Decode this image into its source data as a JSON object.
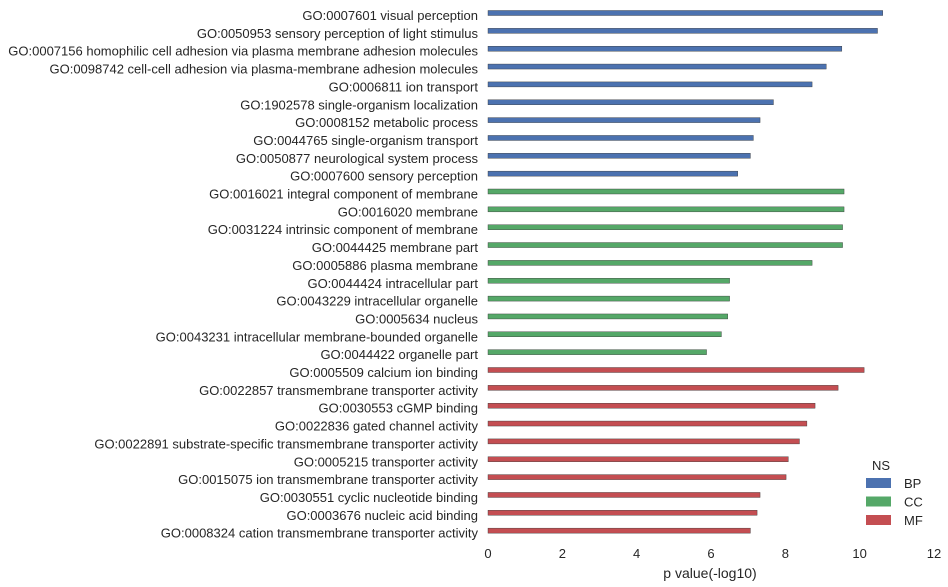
{
  "chart_data": {
    "type": "bar",
    "orientation": "horizontal",
    "title": "",
    "xlabel": "p value(-log10)",
    "ylabel": "",
    "xlim": [
      0,
      12
    ],
    "xticks": [
      "0",
      "2",
      "4",
      "6",
      "8",
      "10",
      "12"
    ],
    "grid": false,
    "legend": {
      "title": "NS",
      "placement": "lower-right",
      "entries": [
        {
          "name": "BP",
          "color": "#4c72b0"
        },
        {
          "name": "CC",
          "color": "#55a868"
        },
        {
          "name": "MF",
          "color": "#c44e52"
        }
      ]
    },
    "categories": [
      "GO:0007601 visual perception",
      "GO:0050953 sensory perception of light stimulus",
      "GO:0007156 homophilic cell adhesion via plasma membrane adhesion molecules",
      "GO:0098742 cell-cell adhesion via plasma-membrane adhesion molecules",
      "GO:0006811 ion transport",
      "GO:1902578 single-organism localization",
      "GO:0008152 metabolic process",
      "GO:0044765 single-organism transport",
      "GO:0050877 neurological system process",
      "GO:0007600 sensory perception",
      "GO:0016021 integral component of membrane",
      "GO:0016020 membrane",
      "GO:0031224 intrinsic component of membrane",
      "GO:0044425 membrane part",
      "GO:0005886 plasma membrane",
      "GO:0044424 intracellular part",
      "GO:0043229 intracellular organelle",
      "GO:0005634 nucleus",
      "GO:0043231 intracellular membrane-bounded organelle",
      "GO:0044422 organelle part",
      "GO:0005509 calcium ion binding",
      "GO:0022857 transmembrane transporter activity",
      "GO:0030553 cGMP binding",
      "GO:0022836 gated channel activity",
      "GO:0022891 substrate-specific transmembrane transporter activity",
      "GO:0005215 transporter activity",
      "GO:0015075 ion transmembrane transporter activity",
      "GO:0030551 cyclic nucleotide binding",
      "GO:0003676 nucleic acid binding",
      "GO:0008324 cation transmembrane transporter activity"
    ],
    "groups": [
      "BP",
      "BP",
      "BP",
      "BP",
      "BP",
      "BP",
      "BP",
      "BP",
      "BP",
      "BP",
      "CC",
      "CC",
      "CC",
      "CC",
      "CC",
      "CC",
      "CC",
      "CC",
      "CC",
      "CC",
      "MF",
      "MF",
      "MF",
      "MF",
      "MF",
      "MF",
      "MF",
      "MF",
      "MF",
      "MF"
    ],
    "values": [
      10.62,
      10.48,
      9.52,
      9.1,
      8.72,
      7.68,
      7.32,
      7.14,
      7.06,
      6.72,
      9.58,
      9.58,
      9.54,
      9.54,
      8.72,
      6.5,
      6.5,
      6.45,
      6.28,
      5.88,
      10.12,
      9.42,
      8.8,
      8.58,
      8.38,
      8.08,
      8.02,
      7.32,
      7.24,
      7.06
    ]
  }
}
